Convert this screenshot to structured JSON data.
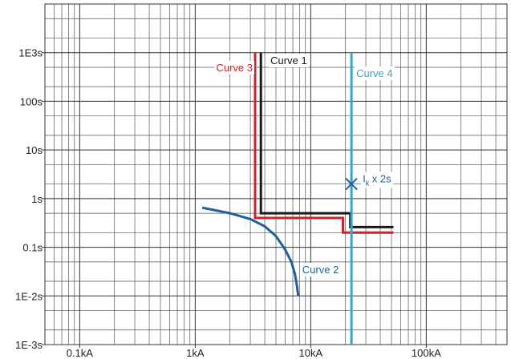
{
  "chart_data": {
    "type": "line",
    "title": "",
    "xlabel": "",
    "ylabel": "",
    "x_scale": "log",
    "y_scale": "log",
    "xlim": [
      0.05,
      500
    ],
    "ylim": [
      0.001,
      10000
    ],
    "x_ticks": [
      {
        "value": 0.1,
        "label": "0.1kA"
      },
      {
        "value": 1,
        "label": "1kA"
      },
      {
        "value": 10,
        "label": "10kA"
      },
      {
        "value": 100,
        "label": "100kA"
      }
    ],
    "y_ticks": [
      {
        "value": 0.001,
        "label": "1E-3s"
      },
      {
        "value": 0.01,
        "label": "1E-2s"
      },
      {
        "value": 0.1,
        "label": "0.1s"
      },
      {
        "value": 1,
        "label": "1s"
      },
      {
        "value": 10,
        "label": "10s"
      },
      {
        "value": 100,
        "label": "100s"
      },
      {
        "value": 1000,
        "label": "1E3s"
      }
    ],
    "grid": true,
    "series": [
      {
        "name": "Curve 1",
        "color": "#1a1a1a",
        "points": [
          [
            3.7,
            1000
          ],
          [
            3.7,
            0.5
          ],
          [
            22,
            0.5
          ],
          [
            22,
            0.26
          ],
          [
            52,
            0.26
          ]
        ]
      },
      {
        "name": "Curve 3",
        "color": "#d0202a",
        "points": [
          [
            3.3,
            1000
          ],
          [
            3.3,
            0.4
          ],
          [
            19,
            0.4
          ],
          [
            19,
            0.2
          ],
          [
            52,
            0.2
          ]
        ]
      },
      {
        "name": "Curve 2",
        "color": "#1f5f9f",
        "points": [
          [
            1.15,
            0.65
          ],
          [
            2,
            0.5
          ],
          [
            3,
            0.38
          ],
          [
            4,
            0.27
          ],
          [
            5,
            0.17
          ],
          [
            6,
            0.09
          ],
          [
            6.8,
            0.05
          ],
          [
            7.3,
            0.028
          ],
          [
            7.6,
            0.016
          ],
          [
            7.8,
            0.01
          ]
        ]
      },
      {
        "name": "Curve 4",
        "color": "#29a8d8",
        "points": [
          [
            22.5,
            0.001
          ],
          [
            22.5,
            1000
          ]
        ]
      }
    ],
    "annotations": [
      {
        "type": "marker",
        "symbol": "x",
        "x": 22.5,
        "y": 2,
        "color": "#1f5f9f",
        "label_prefix": "I",
        "label_sub": "k",
        "label_suffix": " x 2s"
      }
    ]
  }
}
